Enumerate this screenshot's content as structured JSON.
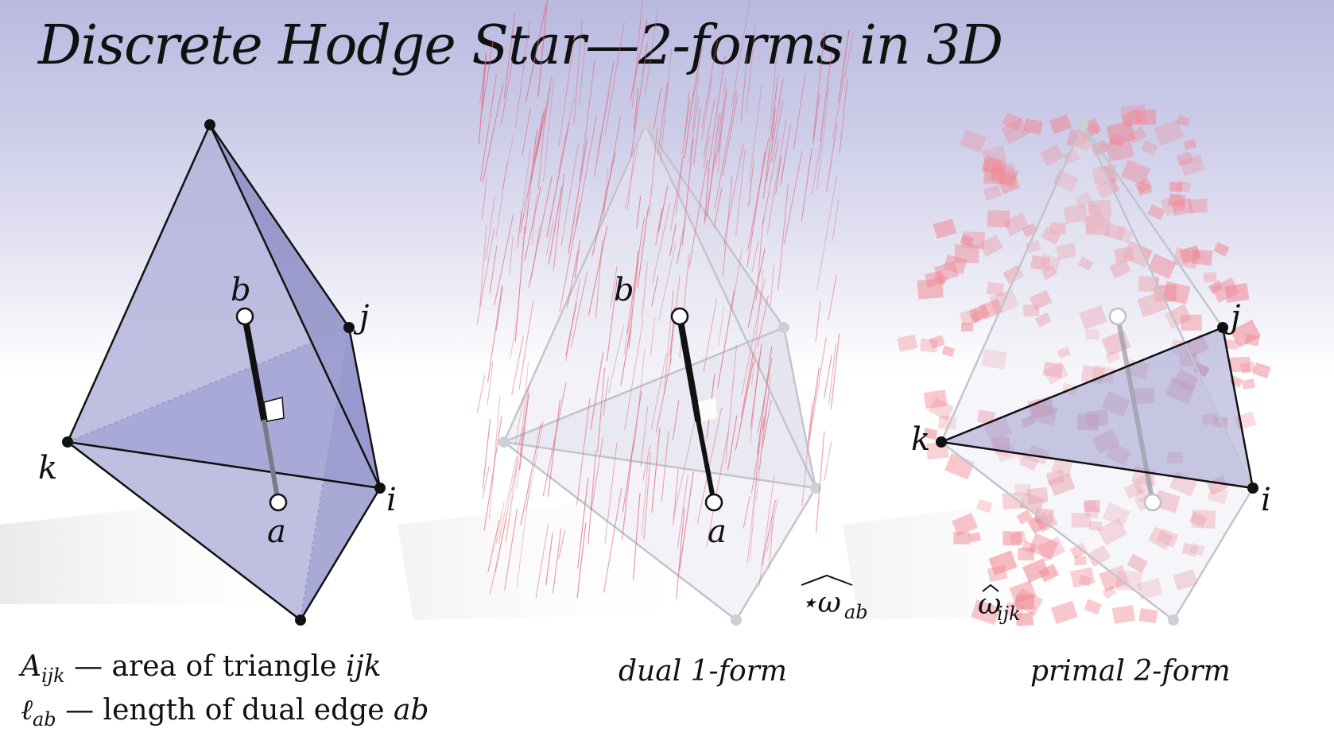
{
  "title": "Discrete Hodge Star—2-forms in 3D",
  "labels": {
    "b": "b",
    "j": "j",
    "k": "k",
    "i": "i",
    "a": "a"
  },
  "form_labels": {
    "star_omega": "⋆ω",
    "star_omega_sub": "ab",
    "omega": "ω",
    "omega_sub": "ijk"
  },
  "captions": {
    "dual": "dual 1-form",
    "primal": "primal 2-form"
  },
  "legend": {
    "area_sym": "A",
    "area_sub": "ijk",
    "area_text": " — area of triangle ",
    "area_var": "ijk",
    "len_sym": "ℓ",
    "len_sub": "ab",
    "len_text": " — length of dual edge ",
    "len_var": "ab"
  },
  "colors": {
    "tet_fill": "#8c8cc8",
    "line_red": "#e06a7a",
    "square_red": "#f08a96"
  }
}
